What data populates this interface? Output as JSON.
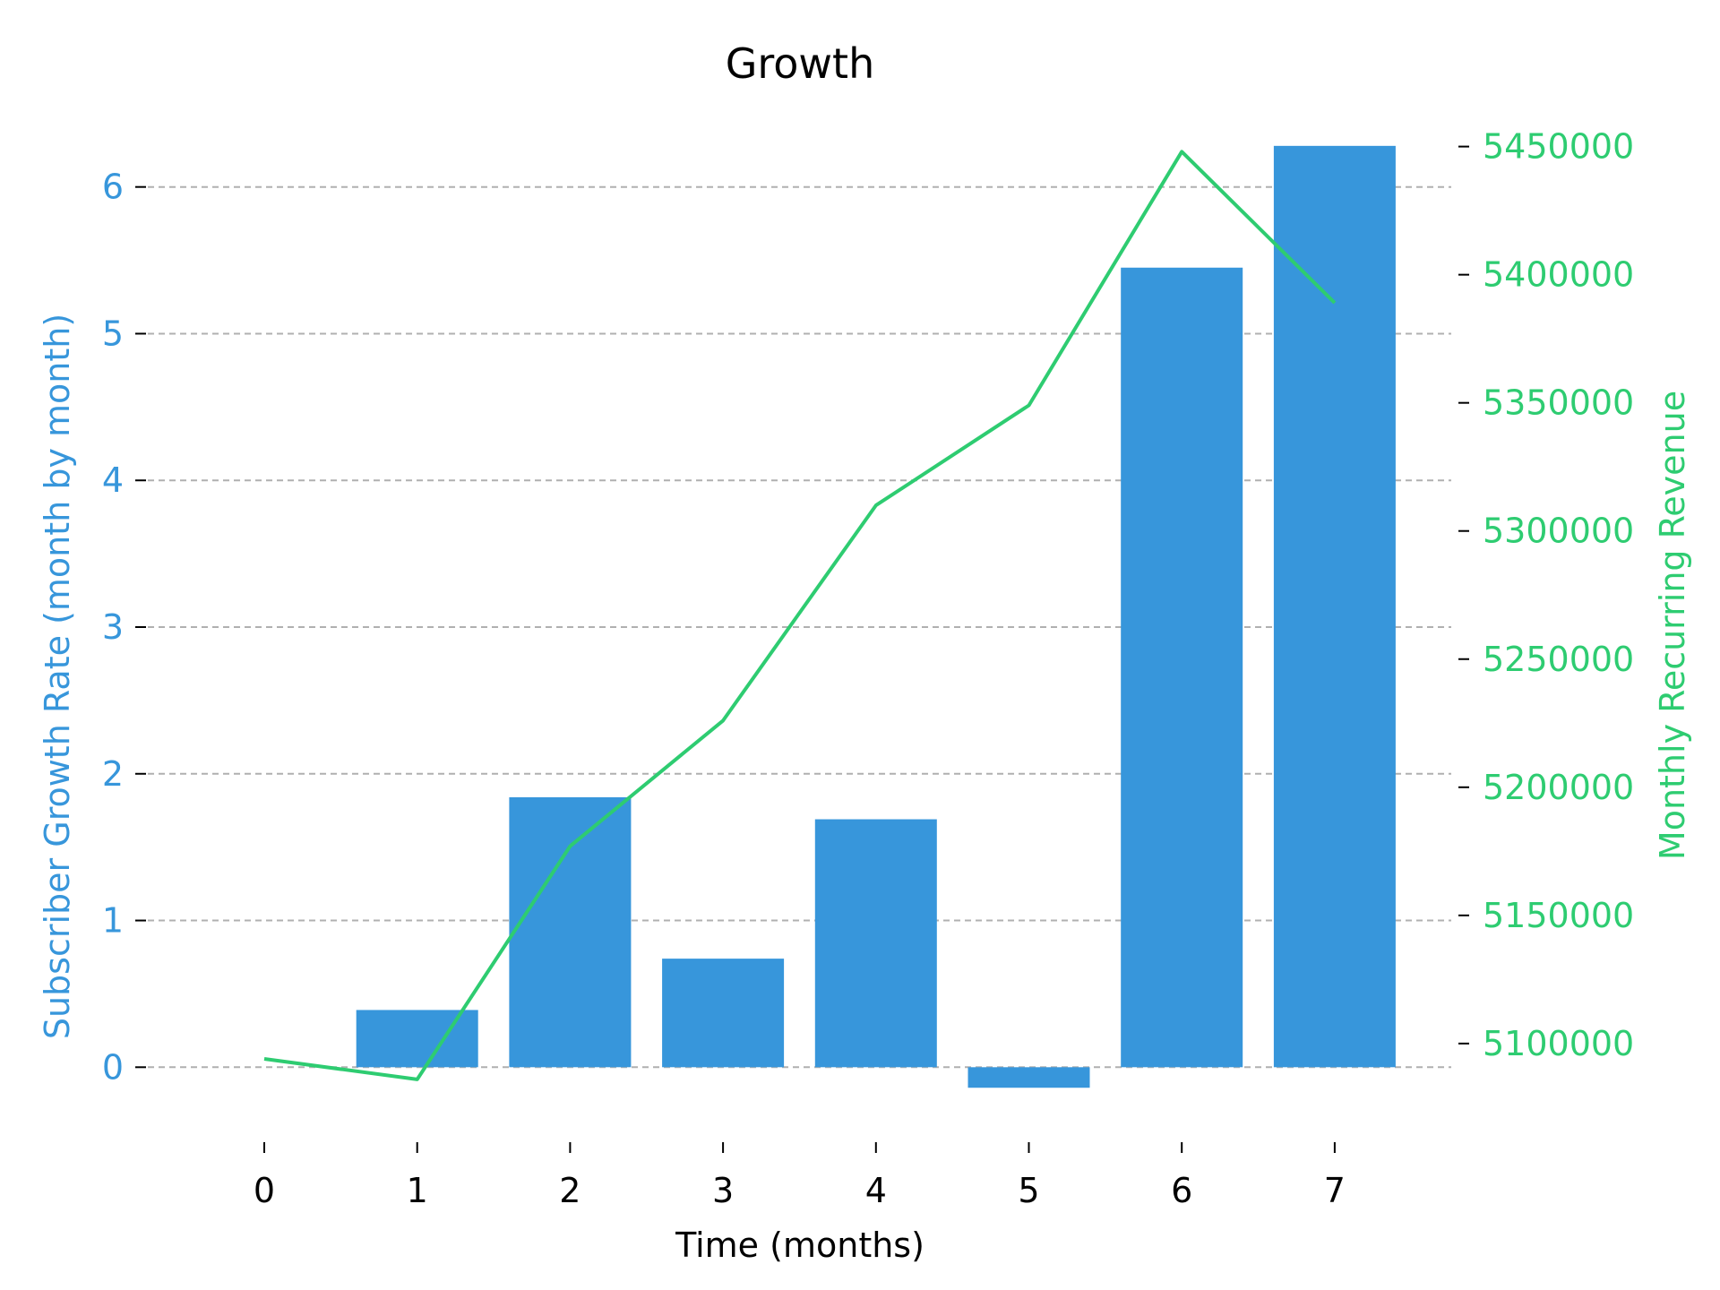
{
  "chart_data": {
    "type": "bar",
    "title": "Growth",
    "xlabel": "Time (months)",
    "ylabel": "Subscriber Growth Rate (month by month)",
    "y2label": "Monthly Recurring Revenue",
    "x": [
      0,
      1,
      2,
      3,
      4,
      5,
      6,
      7
    ],
    "x_tick_labels": [
      "0",
      "1",
      "2",
      "3",
      "4",
      "5",
      "6",
      "7"
    ],
    "ylim": [
      -0.45,
      6.45
    ],
    "y_ticks": [
      0,
      1,
      2,
      3,
      4,
      5,
      6
    ],
    "y_tick_labels": [
      "0",
      "1",
      "2",
      "3",
      "4",
      "5",
      "6"
    ],
    "y2lim": [
      5065000,
      5460000
    ],
    "y2_ticks": [
      5100000,
      5150000,
      5200000,
      5250000,
      5300000,
      5350000,
      5400000,
      5450000
    ],
    "y2_tick_labels": [
      "5100000",
      "5150000",
      "5200000",
      "5250000",
      "5300000",
      "5350000",
      "5400000",
      "5450000"
    ],
    "grid": true,
    "series": [
      {
        "kind": "bar",
        "axis": "left",
        "x": [
          1,
          2,
          3,
          4,
          5,
          6,
          7
        ],
        "values": [
          0.39,
          1.84,
          0.74,
          1.69,
          -0.14,
          5.45,
          6.28
        ]
      },
      {
        "kind": "line",
        "axis": "right",
        "x": [
          0,
          1,
          2,
          3,
          4,
          5,
          6,
          7
        ],
        "values": [
          5094000,
          5086000,
          5177000,
          5226000,
          5310000,
          5349000,
          5448000,
          5389000
        ]
      }
    ],
    "colors": {
      "bars": "#3796db",
      "line": "#2ecc71",
      "left_axis": "#3796db",
      "right_axis": "#2ecc71",
      "grid": "#b0b0b0",
      "text": "#000000"
    }
  }
}
